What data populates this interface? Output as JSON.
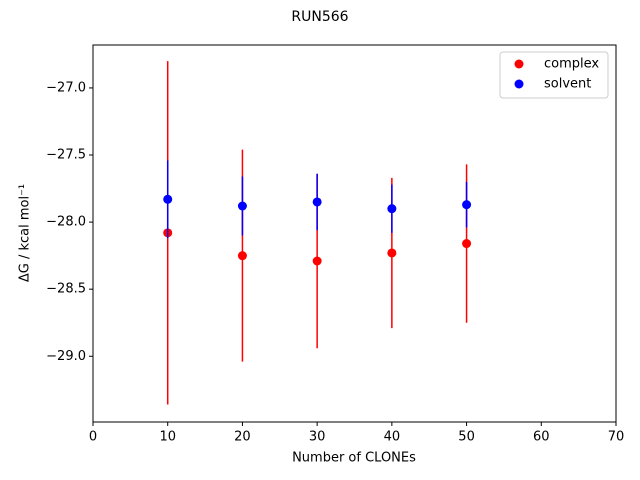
{
  "chart_data": {
    "type": "errorbar-scatter",
    "title": "RUN566",
    "xlabel": "Number of CLONEs",
    "ylabel": "ΔG / kcal mol⁻¹",
    "x": [
      10,
      20,
      30,
      40,
      50
    ],
    "series": [
      {
        "name": "complex",
        "color": "#ff0000",
        "values": [
          -28.08,
          -28.25,
          -28.29,
          -28.23,
          -28.16
        ],
        "errors": [
          1.28,
          0.79,
          0.65,
          0.56,
          0.59
        ]
      },
      {
        "name": "solvent",
        "color": "#0000ff",
        "values": [
          -27.83,
          -27.88,
          -27.85,
          -27.9,
          -27.87
        ],
        "errors": [
          0.29,
          0.22,
          0.21,
          0.18,
          0.17
        ]
      }
    ],
    "xlim": [
      0,
      70
    ],
    "xticks": [
      0,
      10,
      20,
      30,
      40,
      50,
      60,
      70
    ],
    "ylim": [
      -29.49,
      -26.68
    ],
    "yticks": [
      {
        "value": -29.0,
        "label": "−29.0"
      },
      {
        "value": -28.5,
        "label": "−28.5"
      },
      {
        "value": -28.0,
        "label": "−28.0"
      },
      {
        "value": -27.5,
        "label": "−27.5"
      },
      {
        "value": -27.0,
        "label": "−27.0"
      }
    ],
    "legend": "upper right",
    "grid": false
  }
}
